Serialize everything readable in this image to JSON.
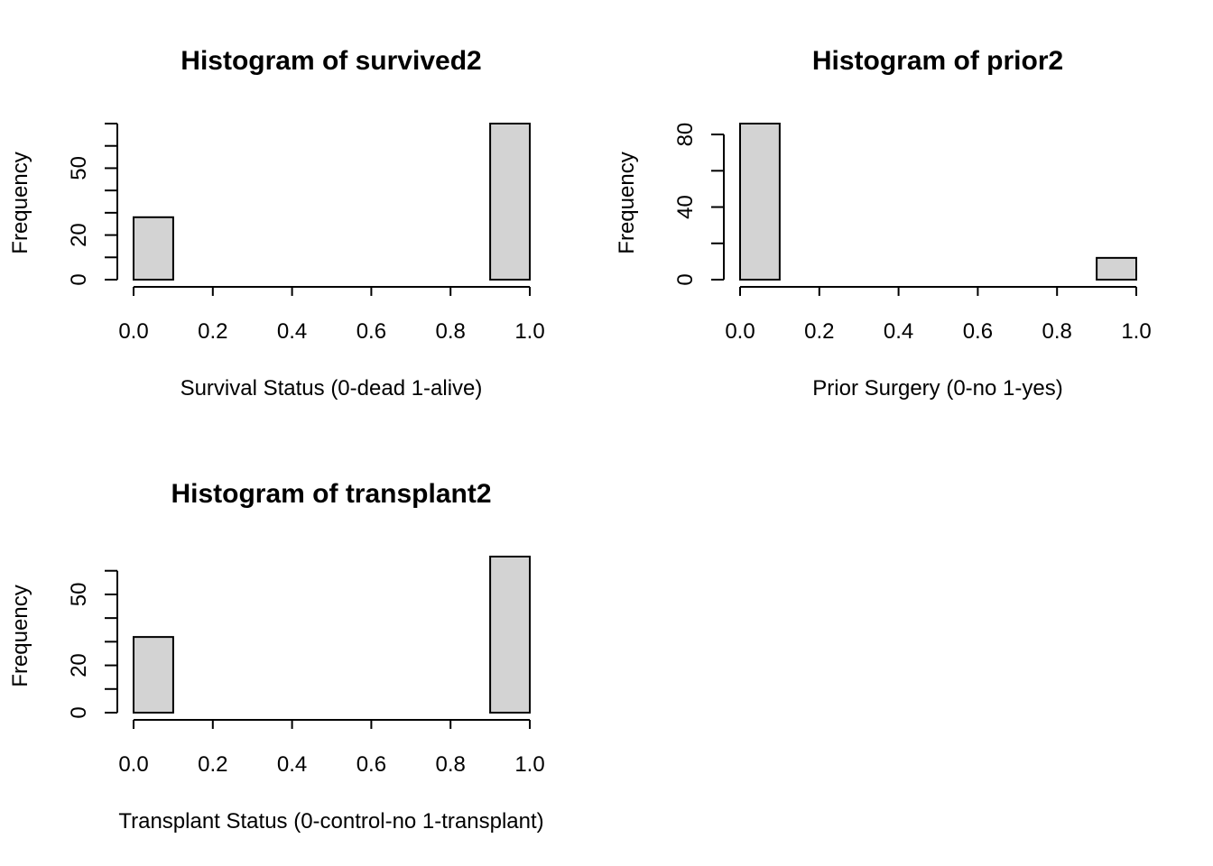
{
  "chart_data": [
    {
      "type": "bar",
      "title": "Histogram of survived2",
      "xlabel": "Survival Status (0-dead 1-alive)",
      "ylabel": "Frequency",
      "bins": [
        [
          0.0,
          0.1
        ],
        [
          0.1,
          0.2
        ],
        [
          0.2,
          0.3
        ],
        [
          0.3,
          0.4
        ],
        [
          0.4,
          0.5
        ],
        [
          0.5,
          0.6
        ],
        [
          0.6,
          0.7
        ],
        [
          0.7,
          0.8
        ],
        [
          0.8,
          0.9
        ],
        [
          0.9,
          1.0
        ]
      ],
      "values": [
        28,
        0,
        0,
        0,
        0,
        0,
        0,
        0,
        0,
        70
      ],
      "xlim": [
        0,
        1
      ],
      "ylim": [
        0,
        70
      ],
      "x_ticks": [
        "0.0",
        "0.2",
        "0.4",
        "0.6",
        "0.8",
        "1.0"
      ],
      "y_ticks_labeled": [
        0,
        20,
        50
      ],
      "y_ticks_all": [
        0,
        10,
        20,
        30,
        40,
        50,
        60,
        70
      ],
      "y_tick_labels": [
        "0",
        "20",
        "50"
      ]
    },
    {
      "type": "bar",
      "title": "Histogram of prior2",
      "xlabel": "Prior Surgery (0-no 1-yes)",
      "ylabel": "Frequency",
      "bins": [
        [
          0.0,
          0.1
        ],
        [
          0.1,
          0.2
        ],
        [
          0.2,
          0.3
        ],
        [
          0.3,
          0.4
        ],
        [
          0.4,
          0.5
        ],
        [
          0.5,
          0.6
        ],
        [
          0.6,
          0.7
        ],
        [
          0.7,
          0.8
        ],
        [
          0.8,
          0.9
        ],
        [
          0.9,
          1.0
        ]
      ],
      "values": [
        86,
        0,
        0,
        0,
        0,
        0,
        0,
        0,
        0,
        12
      ],
      "xlim": [
        0,
        1
      ],
      "ylim": [
        0,
        86
      ],
      "x_ticks": [
        "0.0",
        "0.2",
        "0.4",
        "0.6",
        "0.8",
        "1.0"
      ],
      "y_ticks_labeled": [
        0,
        40,
        80
      ],
      "y_ticks_all": [
        0,
        20,
        40,
        60,
        80
      ],
      "y_tick_labels": [
        "0",
        "40",
        "80"
      ]
    },
    {
      "type": "bar",
      "title": "Histogram of transplant2",
      "xlabel": "Transplant Status (0-control-no 1-transplant)",
      "ylabel": "Frequency",
      "bins": [
        [
          0.0,
          0.1
        ],
        [
          0.1,
          0.2
        ],
        [
          0.2,
          0.3
        ],
        [
          0.3,
          0.4
        ],
        [
          0.4,
          0.5
        ],
        [
          0.5,
          0.6
        ],
        [
          0.6,
          0.7
        ],
        [
          0.7,
          0.8
        ],
        [
          0.8,
          0.9
        ],
        [
          0.9,
          1.0
        ]
      ],
      "values": [
        32,
        0,
        0,
        0,
        0,
        0,
        0,
        0,
        0,
        66
      ],
      "xlim": [
        0,
        1
      ],
      "ylim": [
        0,
        66
      ],
      "x_ticks": [
        "0.0",
        "0.2",
        "0.4",
        "0.6",
        "0.8",
        "1.0"
      ],
      "y_ticks_labeled": [
        0,
        20,
        50
      ],
      "y_ticks_all": [
        0,
        10,
        20,
        30,
        40,
        50,
        60
      ],
      "y_tick_labels": [
        "0",
        "20",
        "50"
      ]
    }
  ]
}
